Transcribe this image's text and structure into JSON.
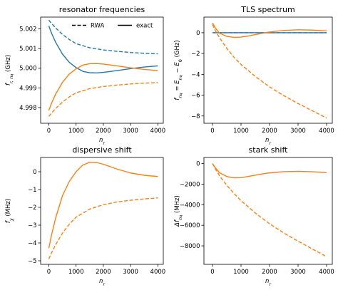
{
  "colors": {
    "blue": "#1f77b4",
    "orange": "#ff7f0e"
  },
  "chart_data": [
    {
      "type": "line",
      "title": "resonator frequencies",
      "xlabel": "n_r",
      "ylabel": "f_{r, n_q} (GHz)",
      "xlim": [
        -300,
        4200
      ],
      "ylim": [
        4.9972,
        5.0026
      ],
      "xticks": [
        0,
        1000,
        2000,
        3000,
        4000
      ],
      "xtick_labels": [
        "0",
        "1000",
        "2000",
        "3000",
        "4000"
      ],
      "yticks": [
        4.998,
        4.999,
        5.0,
        5.001,
        5.002
      ],
      "ytick_labels": [
        "4.998",
        "4.999",
        "5.000",
        "5.001",
        "5.002"
      ],
      "legend": {
        "placement": "top-right",
        "entries": [
          {
            "label": "RWA",
            "style": "dashed"
          },
          {
            "label": "exact",
            "style": "solid"
          }
        ]
      },
      "series": [
        {
          "color": "blue",
          "style": "dashed",
          "x": [
            0,
            100,
            250,
            500,
            750,
            1000,
            1500,
            2000,
            2500,
            3000,
            3500,
            4000
          ],
          "y": [
            5.00245,
            5.00228,
            5.00205,
            5.00172,
            5.00146,
            5.00125,
            5.00104,
            5.00093,
            5.00086,
            5.0008,
            5.00076,
            5.00073
          ]
        },
        {
          "color": "orange",
          "style": "dashed",
          "x": [
            0,
            100,
            250,
            500,
            750,
            1000,
            1500,
            2000,
            2500,
            3000,
            3500,
            4000
          ],
          "y": [
            4.99755,
            4.99772,
            4.99795,
            4.99828,
            4.99854,
            4.99875,
            4.99896,
            4.99907,
            4.99914,
            4.9992,
            4.99924,
            4.99927
          ]
        },
        {
          "color": "blue",
          "style": "solid",
          "x": [
            0,
            100,
            250,
            500,
            750,
            1000,
            1250,
            1500,
            1750,
            2000,
            2500,
            3000,
            3500,
            4000
          ],
          "y": [
            5.00215,
            5.00178,
            5.00132,
            5.00072,
            5.0003,
            5.00003,
            4.99984,
            4.99977,
            4.99976,
            4.99979,
            4.99988,
            4.99998,
            5.00006,
            5.00012
          ]
        },
        {
          "color": "orange",
          "style": "solid",
          "x": [
            0,
            100,
            250,
            500,
            750,
            1000,
            1250,
            1500,
            1750,
            2000,
            2500,
            3000,
            3500,
            4000
          ],
          "y": [
            4.99785,
            4.99822,
            4.99868,
            4.99928,
            4.9997,
            4.99997,
            5.00016,
            5.00023,
            5.00024,
            5.00021,
            5.00012,
            5.00002,
            4.99994,
            4.99988
          ]
        }
      ]
    },
    {
      "type": "line",
      "title": "TLS spectrum",
      "xlabel": "n_r",
      "ylabel": "f_{n_q} = E_{n_q} − E_0 (GHz)",
      "xlim": [
        -300,
        4200
      ],
      "ylim": [
        -8.7,
        1.5
      ],
      "xticks": [
        0,
        1000,
        2000,
        3000,
        4000
      ],
      "xtick_labels": [
        "0",
        "1000",
        "2000",
        "3000",
        "4000"
      ],
      "yticks": [
        -8,
        -6,
        -4,
        -2,
        0
      ],
      "ytick_labels": [
        "−8",
        "−6",
        "−4",
        "−2",
        "0"
      ],
      "series": [
        {
          "color": "blue",
          "style": "dashed",
          "x": [
            0,
            4000
          ],
          "y": [
            0,
            0
          ]
        },
        {
          "color": "blue",
          "style": "solid",
          "x": [
            0,
            4000
          ],
          "y": [
            0,
            0
          ]
        },
        {
          "color": "orange",
          "style": "dashed",
          "x": [
            0,
            100,
            250,
            500,
            750,
            1000,
            1500,
            2000,
            2500,
            3000,
            3500,
            4000
          ],
          "y": [
            0.8,
            0.2,
            -0.5,
            -1.5,
            -2.35,
            -3.05,
            -4.2,
            -5.2,
            -6.05,
            -6.8,
            -7.5,
            -8.2
          ]
        },
        {
          "color": "orange",
          "style": "solid",
          "x": [
            0,
            100,
            250,
            500,
            750,
            1000,
            1250,
            1500,
            1750,
            2000,
            2500,
            3000,
            3500,
            4000
          ],
          "y": [
            0.95,
            0.45,
            -0.05,
            -0.35,
            -0.45,
            -0.42,
            -0.32,
            -0.18,
            -0.05,
            0.07,
            0.22,
            0.28,
            0.25,
            0.18
          ]
        }
      ]
    },
    {
      "type": "line",
      "title": "dispersive shift",
      "xlabel": "n_r",
      "ylabel": "f_χ (MHz)",
      "xlim": [
        -300,
        4200
      ],
      "ylim": [
        -5.2,
        0.8
      ],
      "xticks": [
        0,
        1000,
        2000,
        3000,
        4000
      ],
      "xtick_labels": [
        "0",
        "1000",
        "2000",
        "3000",
        "4000"
      ],
      "yticks": [
        -5,
        -4,
        -3,
        -2,
        -1,
        0
      ],
      "ytick_labels": [
        "−5",
        "−4",
        "−3",
        "−2",
        "−1",
        "0"
      ],
      "series": [
        {
          "color": "orange",
          "style": "dashed",
          "x": [
            0,
            100,
            250,
            500,
            750,
            1000,
            1500,
            2000,
            2500,
            3000,
            3500,
            4000
          ],
          "y": [
            -4.9,
            -4.55,
            -4.1,
            -3.45,
            -2.95,
            -2.55,
            -2.1,
            -1.85,
            -1.7,
            -1.6,
            -1.53,
            -1.47
          ]
        },
        {
          "color": "orange",
          "style": "solid",
          "x": [
            0,
            100,
            250,
            500,
            750,
            1000,
            1250,
            1500,
            1750,
            2000,
            2500,
            3000,
            3500,
            4000
          ],
          "y": [
            -4.3,
            -3.55,
            -2.6,
            -1.35,
            -0.55,
            0.0,
            0.38,
            0.53,
            0.52,
            0.42,
            0.15,
            -0.07,
            -0.2,
            -0.27
          ]
        }
      ]
    },
    {
      "type": "line",
      "title": "stark shift",
      "xlabel": "n_r",
      "ylabel": "Δf_{n_q} (MHz)",
      "xlim": [
        -300,
        4200
      ],
      "ylim": [
        -9800,
        600
      ],
      "xticks": [
        0,
        1000,
        2000,
        3000,
        4000
      ],
      "xtick_labels": [
        "0",
        "1000",
        "2000",
        "3000",
        "4000"
      ],
      "yticks": [
        -8000,
        -6000,
        -4000,
        -2000,
        0
      ],
      "ytick_labels": [
        "−8000",
        "−6000",
        "−4000",
        "−2000",
        "0"
      ],
      "series": [
        {
          "color": "orange",
          "style": "dashed",
          "x": [
            0,
            100,
            250,
            500,
            750,
            1000,
            1500,
            2000,
            2500,
            3000,
            3500,
            4000
          ],
          "y": [
            0,
            -500,
            -1200,
            -2100,
            -2900,
            -3600,
            -4800,
            -5850,
            -6750,
            -7550,
            -8300,
            -9050
          ]
        },
        {
          "color": "orange",
          "style": "solid",
          "x": [
            0,
            100,
            250,
            500,
            750,
            1000,
            1250,
            1500,
            1750,
            2000,
            2500,
            3000,
            3500,
            4000
          ],
          "y": [
            0,
            -400,
            -900,
            -1250,
            -1380,
            -1360,
            -1250,
            -1120,
            -1000,
            -900,
            -780,
            -750,
            -790,
            -880
          ]
        }
      ]
    }
  ]
}
